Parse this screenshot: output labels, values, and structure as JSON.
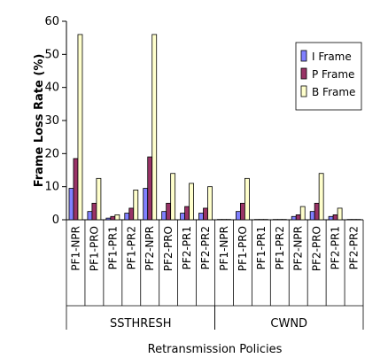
{
  "chart_data": {
    "type": "bar",
    "ylabel": "Frame Loss Rate (%)",
    "xlabel": "Retransmission Policies",
    "ylim": [
      0,
      60
    ],
    "yticks": [
      0,
      10,
      20,
      30,
      40,
      50,
      60
    ],
    "grid": false,
    "legend_position": "top-right",
    "groups": [
      {
        "label": "SSTHRESH",
        "start": 0,
        "count": 8
      },
      {
        "label": "CWND",
        "start": 8,
        "count": 8
      }
    ],
    "categories": [
      "PF1-NPR",
      "PF1-PRO",
      "PF1-PR1",
      "PF1-PR2",
      "PF2-NPR",
      "PF2-PRO",
      "PF2-PR1",
      "PF2-PR2",
      "PF1-NPR",
      "PF1-PRO",
      "PF1-PR1",
      "PF1-PR2",
      "PF2-NPR",
      "PF2-PRO",
      "PF2-PR1",
      "PF2-PR2"
    ],
    "series": [
      {
        "name": "I Frame",
        "color": "#8080ff",
        "values": [
          9.5,
          2.5,
          0.5,
          2.0,
          9.5,
          2.5,
          2.0,
          2.0,
          0.1,
          2.5,
          0.1,
          0.1,
          1.0,
          2.5,
          1.0,
          0.1
        ]
      },
      {
        "name": "P Frame",
        "color": "#993366",
        "values": [
          18.5,
          5.0,
          1.0,
          3.5,
          19.0,
          5.0,
          4.0,
          3.5,
          0.1,
          5.0,
          0.1,
          0.1,
          1.5,
          5.0,
          1.5,
          0.1
        ]
      },
      {
        "name": "B Frame",
        "color": "#ffffcc",
        "values": [
          56.0,
          12.5,
          1.5,
          9.0,
          56.0,
          14.0,
          11.0,
          10.0,
          0.1,
          12.5,
          0.1,
          0.1,
          4.0,
          14.0,
          3.5,
          0.1
        ]
      }
    ]
  }
}
